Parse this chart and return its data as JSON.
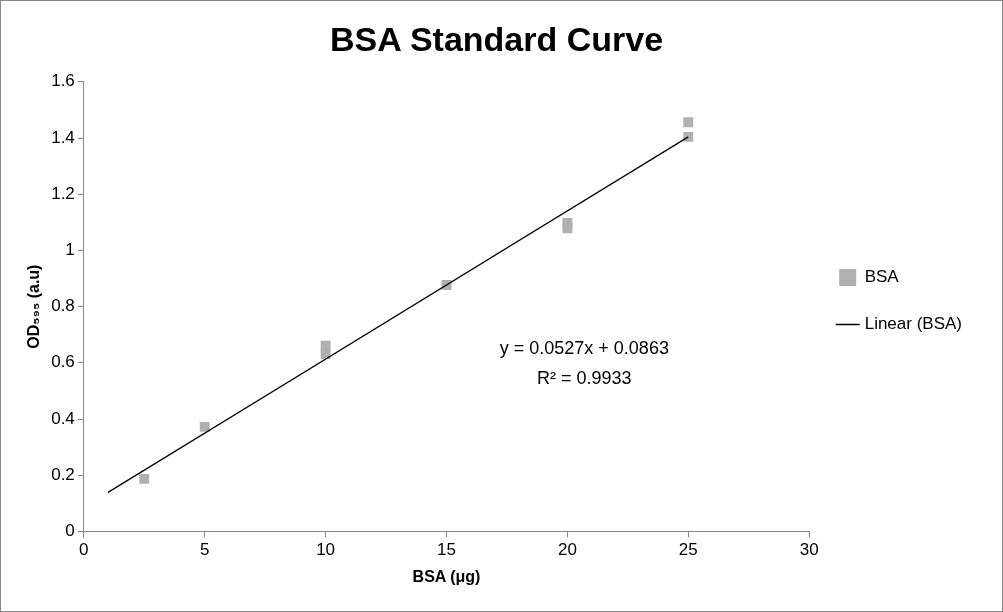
{
  "chart_data": {
    "type": "scatter",
    "title": "BSA Standard Curve",
    "xlabel": "BSA (μg)",
    "ylabel": "OD₅₉₅ (a.u)",
    "xlim": [
      0,
      30
    ],
    "xticks": [
      0,
      5,
      10,
      15,
      20,
      25,
      30
    ],
    "ylim": [
      0,
      1.6
    ],
    "yticks": [
      0,
      0.2,
      0.4,
      0.6,
      0.8,
      1,
      1.2,
      1.4,
      1.6
    ],
    "grid": false,
    "legend": "right",
    "series": [
      {
        "name": "BSA",
        "type": "scatter",
        "marker": "square",
        "color": "#b0b0b0",
        "x": [
          2.5,
          5,
          10,
          10,
          15,
          20,
          20,
          25,
          25
        ],
        "values": [
          0.187,
          0.372,
          0.661,
          0.631,
          0.877,
          1.098,
          1.079,
          1.456,
          1.404
        ]
      },
      {
        "name": "Linear (BSA)",
        "type": "line",
        "marker": "none",
        "line_style": "solid",
        "color": "#000000",
        "x": [
          1,
          25
        ],
        "values": [
          0.139,
          1.404
        ]
      }
    ],
    "annotations": [
      "y = 0.0527x + 0.0863",
      "R² = 0.9933"
    ]
  }
}
